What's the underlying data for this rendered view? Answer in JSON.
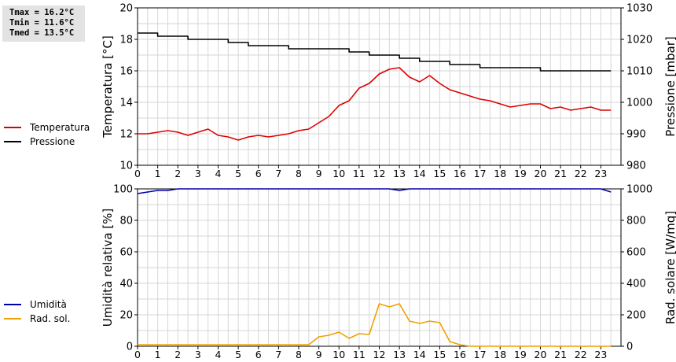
{
  "stats": {
    "tmax": "Tmax = 16.2°C",
    "tmin": "Tmin = 11.6°C",
    "tmed": "Tmed = 13.5°C"
  },
  "legend_top": [
    {
      "label": "Temperatura",
      "color": "#dd0000"
    },
    {
      "label": "Pressione",
      "color": "#000000"
    }
  ],
  "legend_bottom": [
    {
      "label": "Umidità",
      "color": "#0000aa"
    },
    {
      "label": "Rad. sol.",
      "color": "#f0a000"
    }
  ],
  "chart_data": [
    {
      "type": "line",
      "xlabel": "",
      "ylabel": "Temperatura [°C]",
      "y2label": "Pressione [mbar]",
      "xlim": [
        0,
        24
      ],
      "ylim": [
        10,
        20
      ],
      "y2lim": [
        980,
        1030
      ],
      "xticks": [
        0,
        1,
        2,
        3,
        4,
        5,
        6,
        7,
        8,
        9,
        10,
        11,
        12,
        13,
        14,
        15,
        16,
        17,
        18,
        19,
        20,
        21,
        22,
        23
      ],
      "yticks": [
        10,
        12,
        14,
        16,
        18,
        20
      ],
      "y2ticks": [
        980,
        990,
        1000,
        1010,
        1020,
        1030
      ],
      "grid": true,
      "series": [
        {
          "name": "Temperatura",
          "axis": "left",
          "color": "#dd0000",
          "x": [
            0,
            0.5,
            1,
            1.5,
            2,
            2.5,
            3,
            3.5,
            4,
            4.5,
            5,
            5.5,
            6,
            6.5,
            7,
            7.5,
            8,
            8.5,
            9,
            9.5,
            10,
            10.5,
            11,
            11.5,
            12,
            12.5,
            13,
            13.5,
            14,
            14.5,
            15,
            15.5,
            16,
            16.5,
            17,
            17.5,
            18,
            18.5,
            19,
            19.5,
            20,
            20.5,
            21,
            21.5,
            22,
            22.5,
            23,
            23.5
          ],
          "y": [
            12,
            12,
            12.1,
            12.2,
            12.1,
            11.9,
            12.1,
            12.3,
            11.9,
            11.8,
            11.6,
            11.8,
            11.9,
            11.8,
            11.9,
            12,
            12.2,
            12.3,
            12.7,
            13.1,
            13.8,
            14.1,
            14.9,
            15.2,
            15.8,
            16.1,
            16.2,
            15.6,
            15.3,
            15.7,
            15.2,
            14.8,
            14.6,
            14.4,
            14.2,
            14.1,
            13.9,
            13.7,
            13.8,
            13.9,
            13.9,
            13.6,
            13.7,
            13.5,
            13.6,
            13.7,
            13.5,
            13.5
          ]
        },
        {
          "name": "Pressione",
          "axis": "right",
          "color": "#000000",
          "step": true,
          "x": [
            0,
            0.5,
            1,
            1.5,
            2,
            2.5,
            3,
            3.5,
            4,
            4.5,
            5,
            5.5,
            6,
            6.5,
            7,
            7.5,
            8,
            8.5,
            9,
            9.5,
            10,
            10.5,
            11,
            11.5,
            12,
            12.5,
            13,
            13.5,
            14,
            14.5,
            15,
            15.5,
            16,
            16.5,
            17,
            17.5,
            18,
            18.5,
            19,
            19.5,
            20,
            20.5,
            21,
            21.5,
            22,
            22.5,
            23,
            23.5
          ],
          "y": [
            1022,
            1022,
            1021,
            1021,
            1021,
            1020,
            1020,
            1020,
            1020,
            1019,
            1019,
            1018,
            1018,
            1018,
            1018,
            1017,
            1017,
            1017,
            1017,
            1017,
            1017,
            1016,
            1016,
            1015,
            1015,
            1015,
            1014,
            1014,
            1013,
            1013,
            1013,
            1012,
            1012,
            1012,
            1011,
            1011,
            1011,
            1011,
            1011,
            1011,
            1010,
            1010,
            1010,
            1010,
            1010,
            1010,
            1010,
            1010
          ]
        }
      ]
    },
    {
      "type": "line",
      "xlabel": "",
      "ylabel": "Umidità relativa [%]",
      "y2label": "Rad. solare [W/mq]",
      "xlim": [
        0,
        24
      ],
      "ylim": [
        0,
        100
      ],
      "y2lim": [
        0,
        1000
      ],
      "xticks": [
        0,
        1,
        2,
        3,
        4,
        5,
        6,
        7,
        8,
        9,
        10,
        11,
        12,
        13,
        14,
        15,
        16,
        17,
        18,
        19,
        20,
        21,
        22,
        23
      ],
      "yticks": [
        0,
        20,
        40,
        60,
        80,
        100
      ],
      "y2ticks": [
        0,
        200,
        400,
        600,
        800,
        1000
      ],
      "grid": true,
      "series": [
        {
          "name": "Umidità",
          "axis": "left",
          "color": "#0000aa",
          "x": [
            0,
            0.5,
            1,
            1.5,
            2,
            2.5,
            3,
            3.5,
            4,
            4.5,
            5,
            5.5,
            6,
            6.5,
            7,
            7.5,
            8,
            8.5,
            9,
            9.5,
            10,
            10.5,
            11,
            11.5,
            12,
            12.5,
            13,
            13.5,
            14,
            14.5,
            15,
            15.5,
            16,
            16.5,
            17,
            17.5,
            18,
            18.5,
            19,
            19.5,
            20,
            20.5,
            21,
            21.5,
            22,
            22.5,
            23,
            23.5
          ],
          "y": [
            97,
            98,
            99,
            99,
            100,
            100,
            100,
            100,
            100,
            100,
            100,
            100,
            100,
            100,
            100,
            100,
            100,
            100,
            100,
            100,
            100,
            100,
            100,
            100,
            100,
            100,
            99,
            100,
            100,
            100,
            100,
            100,
            100,
            100,
            100,
            100,
            100,
            100,
            100,
            100,
            100,
            100,
            100,
            100,
            100,
            100,
            100,
            98
          ]
        },
        {
          "name": "Rad. sol.",
          "axis": "right",
          "color": "#f0a000",
          "x": [
            0,
            0.5,
            1,
            1.5,
            2,
            2.5,
            3,
            3.5,
            4,
            4.5,
            5,
            5.5,
            6,
            6.5,
            7,
            7.5,
            8,
            8.5,
            9,
            9.5,
            10,
            10.5,
            11,
            11.5,
            12,
            12.5,
            13,
            13.5,
            14,
            14.5,
            15,
            15.5,
            16,
            16.5,
            17,
            17.5,
            18,
            18.5,
            19,
            19.5,
            20,
            20.5,
            21,
            21.5,
            22,
            22.5,
            23,
            23.5
          ],
          "y": [
            10,
            10,
            10,
            10,
            10,
            10,
            10,
            10,
            10,
            10,
            10,
            10,
            10,
            10,
            10,
            10,
            10,
            10,
            60,
            70,
            90,
            50,
            80,
            75,
            270,
            250,
            270,
            160,
            145,
            160,
            150,
            30,
            10,
            0,
            0,
            0,
            0,
            0,
            0,
            0,
            0,
            0,
            0,
            0,
            0,
            0,
            0,
            0
          ]
        }
      ]
    }
  ]
}
